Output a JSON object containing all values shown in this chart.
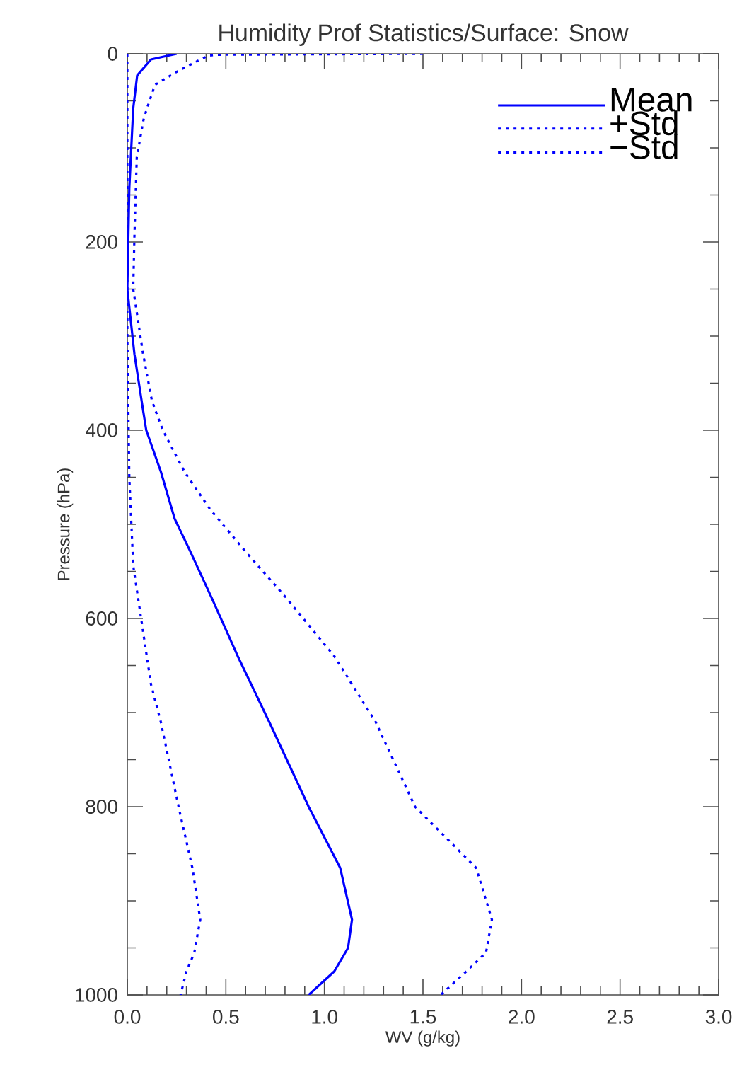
{
  "chart_data": {
    "type": "line",
    "title": "Humidity Prof Statistics/Surface: Snow",
    "xlabel": "WV (g/kg)",
    "ylabel": "Pressure (hPa)",
    "xlim": [
      0,
      3.0
    ],
    "ylim": [
      1000,
      0
    ],
    "xticks": [
      {
        "value": 0,
        "label": "0.0"
      },
      {
        "value": 0.1,
        "label": null
      },
      {
        "value": 0.2,
        "label": null
      },
      {
        "value": 0.3,
        "label": null
      },
      {
        "value": 0.4,
        "label": null
      },
      {
        "value": 0.5,
        "label": "0.5"
      },
      {
        "value": 0.6,
        "label": null
      },
      {
        "value": 0.7,
        "label": null
      },
      {
        "value": 0.8,
        "label": null
      },
      {
        "value": 0.9,
        "label": null
      },
      {
        "value": 1.0,
        "label": "1.0"
      },
      {
        "value": 1.1,
        "label": null
      },
      {
        "value": 1.2,
        "label": null
      },
      {
        "value": 1.3,
        "label": null
      },
      {
        "value": 1.4,
        "label": null
      },
      {
        "value": 1.5,
        "label": "1.5"
      },
      {
        "value": 1.6,
        "label": null
      },
      {
        "value": 1.7,
        "label": null
      },
      {
        "value": 1.8,
        "label": null
      },
      {
        "value": 1.9,
        "label": null
      },
      {
        "value": 2.0,
        "label": "2.0"
      },
      {
        "value": 2.1,
        "label": null
      },
      {
        "value": 2.2,
        "label": null
      },
      {
        "value": 2.3,
        "label": null
      },
      {
        "value": 2.4,
        "label": null
      },
      {
        "value": 2.5,
        "label": "2.5"
      },
      {
        "value": 2.6,
        "label": null
      },
      {
        "value": 2.7,
        "label": null
      },
      {
        "value": 2.8,
        "label": null
      },
      {
        "value": 2.9,
        "label": null
      },
      {
        "value": 3.0,
        "label": "3.0"
      }
    ],
    "yticks": [
      0,
      {
        "value": 50,
        "label": null
      },
      {
        "value": 100,
        "label": null
      },
      {
        "value": 150,
        "label": null
      },
      200,
      {
        "value": 250,
        "label": null
      },
      {
        "value": 300,
        "label": null
      },
      {
        "value": 350,
        "label": null
      },
      400,
      {
        "value": 450,
        "label": null
      },
      {
        "value": 500,
        "label": null
      },
      {
        "value": 550,
        "label": null
      },
      600,
      {
        "value": 650,
        "label": null
      },
      {
        "value": 700,
        "label": null
      },
      {
        "value": 750,
        "label": null
      },
      800,
      {
        "value": 850,
        "label": null
      },
      {
        "value": 900,
        "label": null
      },
      {
        "value": 950,
        "label": null
      },
      1000
    ],
    "grid": false,
    "legend": "top right",
    "series": [
      {
        "name": "Mean",
        "color": "#0000ff",
        "line_style": "solid",
        "x": [
          0.25,
          0.12,
          0.05,
          0.03,
          0.01,
          0.0,
          0.036,
          0.08,
          0.096,
          0.17,
          0.24,
          0.32,
          0.43,
          0.56,
          0.72,
          0.92,
          1.08,
          1.14,
          1.12,
          1.05,
          0.92
        ],
        "values": [
          0,
          6,
          23,
          58,
          143,
          250,
          319,
          379,
          400,
          444,
          494,
          529,
          579,
          640,
          710,
          800,
          865,
          920,
          950,
          975,
          1000
        ]
      },
      {
        "name": "+Std",
        "color": "#0000ff",
        "line_style": "dotted",
        "x": [
          1.5,
          0.45,
          0.41,
          0.26,
          0.14,
          0.084,
          0.048,
          0.036,
          0.03,
          0.08,
          0.125,
          0.18,
          0.29,
          0.42,
          0.6,
          0.81,
          1.05,
          1.26,
          1.46,
          1.77,
          1.85,
          1.82,
          1.72,
          1.59
        ],
        "values": [
          0,
          1,
          2,
          18,
          33,
          68,
          110,
          194,
          250,
          319,
          369,
          400,
          444,
          484,
          529,
          579,
          640,
          710,
          800,
          865,
          920,
          955,
          975,
          1000
        ]
      },
      {
        "name": "−Std",
        "color": "#0000ff",
        "line_style": "dotted",
        "x": [
          0.0,
          0.0,
          0.01,
          0.03,
          0.07,
          0.12,
          0.17,
          0.26,
          0.33,
          0.37,
          0.34,
          0.3,
          0.27
        ],
        "values": [
          0,
          300,
          450,
          544,
          600,
          670,
          710,
          800,
          865,
          920,
          955,
          975,
          1000
        ]
      }
    ]
  }
}
